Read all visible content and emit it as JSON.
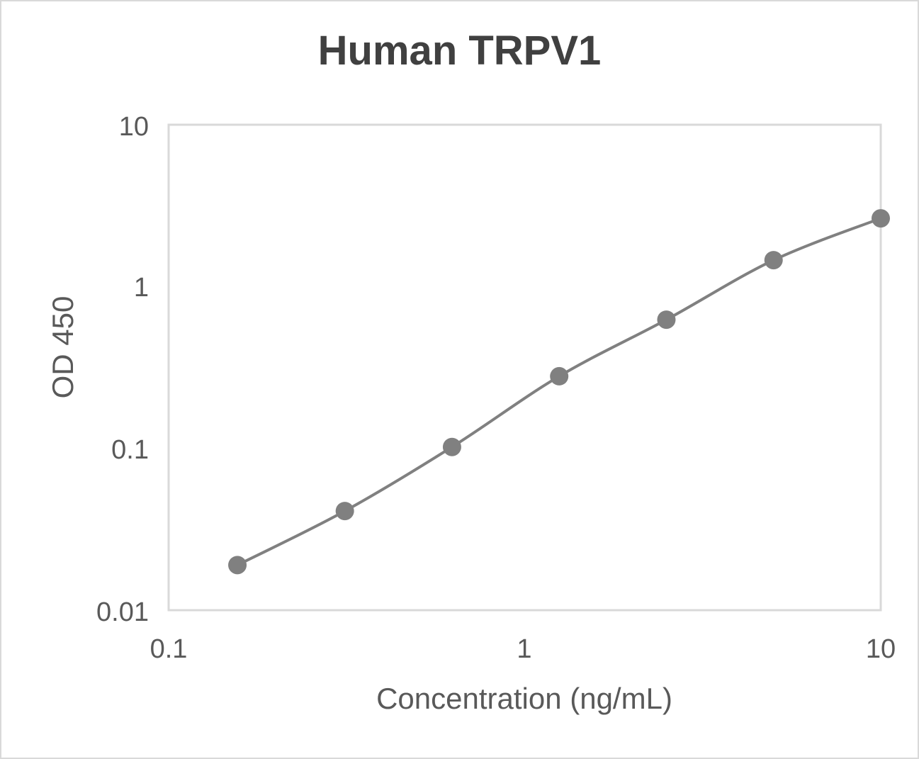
{
  "chart": {
    "title": "Human TRPV1",
    "xlabel": "Concentration (ng/mL)",
    "ylabel": "OD 450",
    "x_ticks": [
      "0.1",
      "1",
      "10"
    ],
    "y_ticks": [
      "10",
      "1",
      "0.1",
      "0.01"
    ],
    "line_color": "#808080",
    "marker_color": "#808080",
    "border_color": "#d9d9d9"
  },
  "chart_data": {
    "type": "scatter",
    "title": "Human TRPV1",
    "xlabel": "Concentration (ng/mL)",
    "ylabel": "OD 450",
    "xscale": "log",
    "yscale": "log",
    "xlim": [
      0.1,
      10
    ],
    "ylim": [
      0.01,
      10
    ],
    "grid": false,
    "legend": null,
    "series": [
      {
        "name": "Human TRPV1",
        "style": "smoothed line with markers",
        "x": [
          0.156,
          0.3125,
          0.625,
          1.25,
          2.5,
          5,
          10
        ],
        "y": [
          0.019,
          0.041,
          0.102,
          0.279,
          0.624,
          1.456,
          2.64
        ]
      }
    ]
  }
}
